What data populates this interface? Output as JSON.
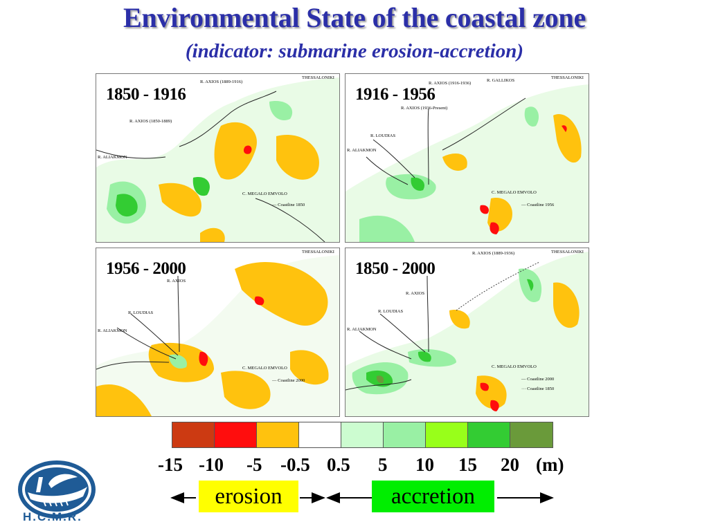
{
  "header": {
    "title": "Environmental State of the coastal zone",
    "subtitle": "(indicator: submarine erosion-accretion)"
  },
  "panels": [
    {
      "period": "1850 - 1916",
      "labels": {
        "thessaloniki": "THESSALONIKI",
        "axios_a": "R. AXIOS (1889-1916)",
        "axios_b": "R. AXIOS (1850-1889)",
        "aliakmon": "R. ALIAKMON",
        "cape": "C. MEGALO EMVOLO",
        "coastline": "Coastline 1850"
      }
    },
    {
      "period": "1916 - 1956",
      "labels": {
        "thessaloniki": "THESSALONIKI",
        "axios_a": "R. AXIOS (1916-1936)",
        "gallikos": "R. GALLIKOS",
        "axios_b": "R. AXIOS (1936-Present)",
        "loudias": "R. LOUDIAS",
        "aliakmon": "R. ALIAKMON",
        "cape": "C. MEGALO EMVOLO",
        "coastline": "Coastline 1956"
      }
    },
    {
      "period": "1956 - 2000",
      "labels": {
        "thessaloniki": "THESSALONIKI",
        "axios": "R. AXIOS",
        "loudias": "R. LOUDIAS",
        "aliakmon": "R. ALIAKMON",
        "cape": "C. MEGALO EMVOLO",
        "coastline": "Coastline 2000"
      }
    },
    {
      "period": "1850 - 2000",
      "labels": {
        "thessaloniki": "THESSALONIKI",
        "axios_a": "R. AXIOS (1889-1936)",
        "axios": "R. AXIOS",
        "loudias": "R. LOUDIAS",
        "aliakmon": "R. ALIAKMON",
        "cape": "C. MEGALO EMVOLO",
        "coastline_a": "Coastline 2000",
        "coastline_b": "Coastline 1850"
      }
    }
  ],
  "legend": {
    "colors": [
      "#cc3a12",
      "#ff0d0d",
      "#ffc20e",
      "#ffffff",
      "#ccfcd0",
      "#99f0a4",
      "#98ff1a",
      "#33cc33",
      "#6a9a3a"
    ],
    "ticks": [
      "-15",
      "-10",
      "-5",
      "-0.5",
      "0.5",
      "5",
      "10",
      "15",
      "20"
    ],
    "unit": "(m)",
    "erosion_label": "erosion",
    "accretion_label": "accretion",
    "erosion_color": "#ffff00",
    "accretion_color": "#00ee00"
  },
  "logo": {
    "text": "H.C.M.R.",
    "icon": "ship-icon"
  }
}
